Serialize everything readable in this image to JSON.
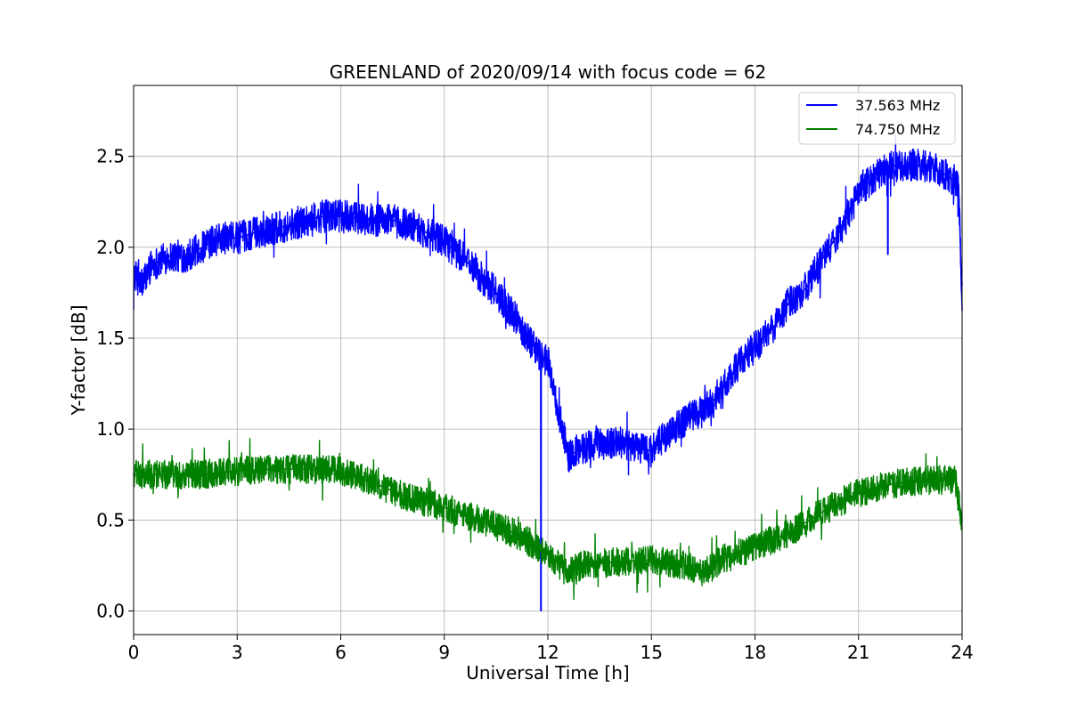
{
  "chart_data": {
    "type": "line",
    "title": "GREENLAND of 2020/09/14 with focus code = 62",
    "xlabel": "Universal Time [h]",
    "ylabel": "Y-factor [dB]",
    "xlim": [
      0,
      24
    ],
    "ylim": [
      -0.13,
      2.89
    ],
    "xticks": [
      0,
      3,
      6,
      9,
      12,
      15,
      18,
      21,
      24
    ],
    "yticks": [
      0.0,
      0.5,
      1.0,
      1.5,
      2.0,
      2.5
    ],
    "xtick_labels": [
      "0",
      "3",
      "6",
      "9",
      "12",
      "15",
      "18",
      "21",
      "24"
    ],
    "ytick_labels": [
      "0.0",
      "0.5",
      "1.0",
      "1.5",
      "2.0",
      "2.5"
    ],
    "grid": true,
    "legend_position": "top-right",
    "series": [
      {
        "name": "37.563 MHz",
        "color": "#0000ff",
        "noise_halfwidth": 0.09,
        "x": [
          0,
          0.25,
          0.5,
          1,
          1.5,
          2,
          2.5,
          3,
          3.5,
          4,
          4.5,
          5,
          5.5,
          6,
          6.5,
          7,
          7.5,
          8,
          8.5,
          9,
          9.5,
          10,
          10.5,
          11,
          11.5,
          11.8,
          12,
          12.3,
          12.6,
          13,
          13.5,
          14,
          14.5,
          15,
          15.5,
          16,
          16.5,
          17,
          17.5,
          18,
          18.5,
          19,
          19.5,
          20,
          20.5,
          21,
          21.5,
          22,
          22.5,
          23,
          23.5,
          23.9,
          24
        ],
        "y": [
          1.85,
          1.8,
          1.9,
          1.95,
          1.95,
          2.0,
          2.05,
          2.05,
          2.08,
          2.1,
          2.12,
          2.15,
          2.17,
          2.17,
          2.16,
          2.15,
          2.15,
          2.12,
          2.08,
          2.03,
          1.95,
          1.85,
          1.75,
          1.63,
          1.48,
          1.4,
          1.38,
          1.1,
          0.85,
          0.9,
          0.92,
          0.93,
          0.9,
          0.88,
          0.98,
          1.05,
          1.1,
          1.2,
          1.35,
          1.45,
          1.55,
          1.7,
          1.78,
          1.95,
          2.1,
          2.3,
          2.4,
          2.45,
          2.45,
          2.45,
          2.4,
          2.35,
          1.65
        ],
        "spikes": [
          {
            "x": 11.8,
            "y": 0.0
          },
          {
            "x": 21.85,
            "y": 1.96
          }
        ]
      },
      {
        "name": "74.750 MHz",
        "color": "#008000",
        "noise_halfwidth": 0.08,
        "x": [
          0,
          1,
          2,
          3,
          4,
          5,
          6,
          7,
          8,
          9,
          10,
          11,
          12,
          12.5,
          13,
          14,
          15,
          16,
          16.5,
          17,
          18,
          19,
          20,
          21,
          22,
          23,
          23.8,
          24
        ],
        "y": [
          0.75,
          0.75,
          0.75,
          0.77,
          0.78,
          0.78,
          0.77,
          0.7,
          0.62,
          0.57,
          0.5,
          0.43,
          0.32,
          0.22,
          0.25,
          0.27,
          0.28,
          0.25,
          0.2,
          0.28,
          0.35,
          0.43,
          0.55,
          0.65,
          0.7,
          0.72,
          0.72,
          0.5
        ]
      }
    ]
  }
}
